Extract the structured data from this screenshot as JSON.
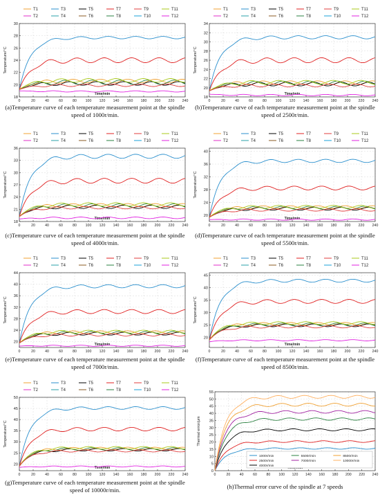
{
  "colors": {
    "T1": "#f0a030",
    "T2": "#e02cc8",
    "T3": "#2a8fcd",
    "T4": "#2aa0a8",
    "T5": "#000000",
    "T6": "#8a5a20",
    "T7": "#e02020",
    "T8": "#2a8040",
    "T9": "#e03c3c",
    "T10": "#1aa0d8",
    "T11": "#a8c818",
    "T12": "#e020e0",
    "speeds": [
      "#2a8fcd",
      "#e02020",
      "#000000",
      "#2a8040",
      "#a020a0",
      "#f0a030",
      "#ffb060"
    ]
  },
  "chart_data": [
    {
      "type": "line",
      "caption": "(a)Temperature curve of each temperature measurement point at the spindle speed of 1000r/min.",
      "xlabel": "Time/min",
      "ylabel": "Temperature/°C",
      "xlim": [
        0,
        240
      ],
      "ylim": [
        18,
        30
      ],
      "xticks": [
        0,
        20,
        40,
        60,
        80,
        100,
        120,
        140,
        160,
        180,
        200,
        220,
        240
      ],
      "yticks": [
        18,
        20,
        22,
        24,
        26,
        28,
        30
      ],
      "grid": true,
      "legend": "top",
      "legend_labels": [
        "T1",
        "T3",
        "T5",
        "T7",
        "T9",
        "T11",
        "T2",
        "T4",
        "T6",
        "T8",
        "T10",
        "T12"
      ],
      "series": [
        {
          "name": "T3",
          "start": 19.2,
          "steady": 27.7,
          "osc": 0.2
        },
        {
          "name": "T7",
          "start": 19.2,
          "steady": 24.0,
          "osc": 0.4
        },
        {
          "name": "T1",
          "start": 19.2,
          "steady": 20.6,
          "osc": 0.3
        },
        {
          "name": "T5",
          "start": 19.2,
          "steady": 20.2,
          "osc": 0.3
        },
        {
          "name": "T8",
          "start": 19.2,
          "steady": 20.4,
          "osc": 0.35
        },
        {
          "name": "T11",
          "start": 19.2,
          "steady": 20.7,
          "osc": 0.3
        },
        {
          "name": "T9",
          "start": 19.2,
          "steady": 19.9,
          "osc": 0.2
        },
        {
          "name": "T12",
          "start": 19.0,
          "steady": 18.9,
          "osc": 0.1
        }
      ]
    },
    {
      "type": "line",
      "caption": "(b)Temperature curve of each temperature measurement point at the spindle speed of 2500r/min.",
      "xlabel": "Time/min",
      "ylabel": "Temperature/°C",
      "xlim": [
        0,
        240
      ],
      "ylim": [
        18,
        34
      ],
      "xticks": [
        0,
        20,
        40,
        60,
        80,
        100,
        120,
        140,
        160,
        180,
        200,
        220,
        240
      ],
      "yticks": [
        18,
        20,
        22,
        24,
        26,
        28,
        30,
        32,
        34
      ],
      "grid": true,
      "legend": "top",
      "legend_labels": [
        "T1",
        "T3",
        "T5",
        "T7",
        "T9",
        "T11",
        "T2",
        "T4",
        "T6",
        "T8",
        "T10",
        "T12"
      ],
      "series": [
        {
          "name": "T3",
          "start": 19.3,
          "steady": 31.0,
          "osc": 0.35
        },
        {
          "name": "T7",
          "start": 19.3,
          "steady": 26.0,
          "osc": 0.55
        },
        {
          "name": "T1",
          "start": 19.3,
          "steady": 21.1,
          "osc": 0.4
        },
        {
          "name": "T5",
          "start": 19.3,
          "steady": 20.8,
          "osc": 0.4
        },
        {
          "name": "T8",
          "start": 19.3,
          "steady": 21.0,
          "osc": 0.45
        },
        {
          "name": "T11",
          "start": 19.3,
          "steady": 21.2,
          "osc": 0.4
        },
        {
          "name": "T9",
          "start": 19.3,
          "steady": 20.5,
          "osc": 0.3
        },
        {
          "name": "T12",
          "start": 18.6,
          "steady": 18.4,
          "osc": 0.15
        }
      ]
    },
    {
      "type": "line",
      "caption": "(c)Temperature curve of each temperature measurement point at the spindle speed of 4000r/min.",
      "xlabel": "Time/min",
      "ylabel": "Temperature/°C",
      "xlim": [
        0,
        240
      ],
      "ylim": [
        18,
        36
      ],
      "xticks": [
        0,
        20,
        40,
        60,
        80,
        100,
        120,
        140,
        160,
        180,
        200,
        220,
        240
      ],
      "yticks": [
        18,
        21,
        24,
        27,
        30,
        33,
        36
      ],
      "grid": true,
      "legend": "top",
      "legend_labels": [
        "T1",
        "T3",
        "T5",
        "T7",
        "T9",
        "T11",
        "T2",
        "T4",
        "T6",
        "T8",
        "T10",
        "T12"
      ],
      "series": [
        {
          "name": "T3",
          "start": 19.2,
          "steady": 34.0,
          "osc": 0.5
        },
        {
          "name": "T7",
          "start": 19.2,
          "steady": 28.0,
          "osc": 0.6
        },
        {
          "name": "T1",
          "start": 19.2,
          "steady": 22.0,
          "osc": 0.4
        },
        {
          "name": "T5",
          "start": 19.2,
          "steady": 21.6,
          "osc": 0.4
        },
        {
          "name": "T8",
          "start": 19.2,
          "steady": 21.9,
          "osc": 0.45
        },
        {
          "name": "T11",
          "start": 19.2,
          "steady": 22.2,
          "osc": 0.4
        },
        {
          "name": "T9",
          "start": 19.2,
          "steady": 21.4,
          "osc": 0.3
        },
        {
          "name": "T12",
          "start": 18.6,
          "steady": 18.9,
          "osc": 0.2
        }
      ]
    },
    {
      "type": "line",
      "caption": "(d)Temperature curve of each temperature measurement point at the spindle speed of 5500r/min.",
      "xlabel": "Time/min",
      "ylabel": "Temperature/°C",
      "xlim": [
        0,
        240
      ],
      "ylim": [
        18,
        41
      ],
      "xticks": [
        0,
        20,
        40,
        60,
        80,
        100,
        120,
        140,
        160,
        180,
        200,
        220,
        240
      ],
      "yticks": [
        20,
        24,
        28,
        32,
        36,
        40
      ],
      "grid": true,
      "legend": "top",
      "legend_labels": [
        "T1",
        "T3",
        "T5",
        "T7",
        "T9",
        "T11",
        "T2",
        "T4",
        "T6",
        "T8",
        "T10",
        "T12"
      ],
      "series": [
        {
          "name": "T3",
          "start": 19.3,
          "steady": 37.0,
          "osc": 0.5
        },
        {
          "name": "T7",
          "start": 19.3,
          "steady": 28.5,
          "osc": 0.6
        },
        {
          "name": "T1",
          "start": 19.3,
          "steady": 22.5,
          "osc": 0.45
        },
        {
          "name": "T5",
          "start": 19.3,
          "steady": 22.0,
          "osc": 0.45
        },
        {
          "name": "T8",
          "start": 19.3,
          "steady": 22.3,
          "osc": 0.5
        },
        {
          "name": "T11",
          "start": 19.3,
          "steady": 22.6,
          "osc": 0.45
        },
        {
          "name": "T9",
          "start": 19.3,
          "steady": 21.6,
          "osc": 0.35
        },
        {
          "name": "T12",
          "start": 18.6,
          "steady": 18.6,
          "osc": 0.2
        }
      ]
    },
    {
      "type": "line",
      "caption": "(e)Temperature curve of each temperature measurement point at the spindle speed of 7000r/min.",
      "xlabel": "Time/min",
      "ylabel": "Temperature/°C",
      "xlim": [
        0,
        240
      ],
      "ylim": [
        18,
        44
      ],
      "xticks": [
        0,
        20,
        40,
        60,
        80,
        100,
        120,
        140,
        160,
        180,
        200,
        220,
        240
      ],
      "yticks": [
        20,
        24,
        28,
        32,
        36,
        40,
        44
      ],
      "grid": true,
      "legend": "top",
      "legend_labels": [
        "T1",
        "T3",
        "T5",
        "T7",
        "T9",
        "T11",
        "T2",
        "T4",
        "T6",
        "T8",
        "T10",
        "T12"
      ],
      "series": [
        {
          "name": "T3",
          "start": 19.5,
          "steady": 39.3,
          "osc": 0.55
        },
        {
          "name": "T7",
          "start": 19.5,
          "steady": 30.5,
          "osc": 0.7
        },
        {
          "name": "T1",
          "start": 19.5,
          "steady": 23.3,
          "osc": 0.5
        },
        {
          "name": "T5",
          "start": 19.5,
          "steady": 22.8,
          "osc": 0.5
        },
        {
          "name": "T8",
          "start": 19.5,
          "steady": 23.1,
          "osc": 0.55
        },
        {
          "name": "T11",
          "start": 19.5,
          "steady": 23.5,
          "osc": 0.5
        },
        {
          "name": "T9",
          "start": 19.5,
          "steady": 22.4,
          "osc": 0.4
        },
        {
          "name": "T12",
          "start": 18.5,
          "steady": 18.6,
          "osc": 0.2
        }
      ]
    },
    {
      "type": "line",
      "caption": "(f)Temperature curve of each temperature measurement point at the spindle speed of 8500r/min.",
      "xlabel": "Time/min",
      "ylabel": "Temperature/°C",
      "xlim": [
        0,
        240
      ],
      "ylim": [
        16,
        46
      ],
      "xticks": [
        0,
        20,
        40,
        60,
        80,
        100,
        120,
        140,
        160,
        180,
        200,
        220,
        240
      ],
      "yticks": [
        20,
        25,
        30,
        35,
        40,
        45
      ],
      "grid": true,
      "legend": "top",
      "legend_labels": [
        "T1",
        "T3",
        "T5",
        "T7",
        "T9",
        "T11",
        "T2",
        "T4",
        "T6",
        "T8",
        "T10",
        "T12"
      ],
      "series": [
        {
          "name": "T3",
          "start": 19.0,
          "steady": 42.8,
          "osc": 0.6
        },
        {
          "name": "T7",
          "start": 19.0,
          "steady": 34.5,
          "osc": 0.8
        },
        {
          "name": "T1",
          "start": 19.0,
          "steady": 25.5,
          "osc": 0.55
        },
        {
          "name": "T5",
          "start": 19.0,
          "steady": 24.9,
          "osc": 0.55
        },
        {
          "name": "T8",
          "start": 19.0,
          "steady": 25.2,
          "osc": 0.6
        },
        {
          "name": "T11",
          "start": 19.0,
          "steady": 25.8,
          "osc": 0.55
        },
        {
          "name": "T9",
          "start": 19.0,
          "steady": 24.3,
          "osc": 0.45
        },
        {
          "name": "T12",
          "start": 18.3,
          "steady": 18.9,
          "osc": 0.25
        }
      ]
    },
    {
      "type": "line",
      "caption": "(g)Temperature curve of each temperature measurement point at the spindle speed of 10000r/min.",
      "xlabel": "Time/min",
      "ylabel": "Temperature/°C",
      "xlim": [
        0,
        240
      ],
      "ylim": [
        17,
        50
      ],
      "xticks": [
        0,
        20,
        40,
        60,
        80,
        100,
        120,
        140,
        160,
        180,
        200,
        220,
        240
      ],
      "yticks": [
        20,
        25,
        30,
        35,
        40,
        45,
        50
      ],
      "grid": true,
      "legend": "top",
      "legend_labels": [
        "T1",
        "T3",
        "T5",
        "T7",
        "T9",
        "T11",
        "T2",
        "T4",
        "T6",
        "T8",
        "T10",
        "T12"
      ],
      "series": [
        {
          "name": "T3",
          "start": 19.0,
          "steady": 45.2,
          "osc": 0.6
        },
        {
          "name": "T7",
          "start": 19.0,
          "steady": 35.7,
          "osc": 0.8
        },
        {
          "name": "T1",
          "start": 19.0,
          "steady": 27.0,
          "osc": 0.55
        },
        {
          "name": "T5",
          "start": 19.0,
          "steady": 26.4,
          "osc": 0.55
        },
        {
          "name": "T8",
          "start": 19.0,
          "steady": 26.8,
          "osc": 0.6
        },
        {
          "name": "T11",
          "start": 19.0,
          "steady": 27.3,
          "osc": 0.55
        },
        {
          "name": "T9",
          "start": 19.0,
          "steady": 25.9,
          "osc": 0.45
        },
        {
          "name": "T12",
          "start": 18.5,
          "steady": 18.9,
          "osc": 0.25
        }
      ]
    },
    {
      "type": "line",
      "caption": "(h)Thermal error curve of the spindle at 7 speeds",
      "xlabel": "Time/min",
      "ylabel": "Thermal error/μm",
      "xlim": [
        0,
        240
      ],
      "ylim": [
        0,
        55
      ],
      "xticks": [
        0,
        20,
        40,
        60,
        80,
        100,
        120,
        140,
        160,
        180,
        200,
        220,
        240
      ],
      "yticks": [
        0,
        5,
        10,
        15,
        20,
        25,
        30,
        35,
        40,
        45,
        50,
        55
      ],
      "grid": true,
      "legend": "lower-right",
      "legend_labels": [
        "1000r/min",
        "5500r/min",
        "8500r/min",
        "2500r/min",
        "7000r/min",
        "10000r/min",
        "4000r/min"
      ],
      "series": [
        {
          "name": "1000r/min",
          "start": 0,
          "steady": 15.5,
          "osc": 0.5
        },
        {
          "name": "2500r/min",
          "start": 0,
          "steady": 20.3,
          "osc": 0.6
        },
        {
          "name": "4000r/min",
          "start": 0,
          "steady": 28.5,
          "osc": 0.7
        },
        {
          "name": "5500r/min",
          "start": 0,
          "steady": 36.0,
          "osc": 0.8
        },
        {
          "name": "7000r/min",
          "start": 0,
          "steady": 41.0,
          "osc": 0.9
        },
        {
          "name": "8500r/min",
          "start": 0,
          "steady": 46.0,
          "osc": 1.0
        },
        {
          "name": "10000r/min",
          "start": 0,
          "steady": 51.5,
          "osc": 1.0
        }
      ]
    }
  ]
}
